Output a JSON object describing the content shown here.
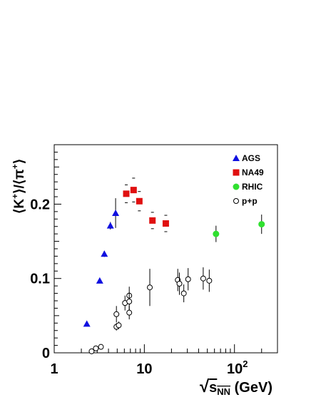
{
  "chart_data": {
    "type": "scatter",
    "title": "",
    "xlabel": {
      "prefix": "√",
      "base": "s",
      "sub": "NN",
      "unit": " (GeV)"
    },
    "ylabel": {
      "open": "⟨",
      "k": "K",
      "k_sup": "+",
      "mid": "⟩/⟨",
      "pi": "π",
      "pi_sup": "+",
      "close": "⟩"
    },
    "x_scale": "log",
    "xlim": [
      1,
      300
    ],
    "ylim": [
      0,
      0.28
    ],
    "x_ticks": [
      {
        "value": 1,
        "label": "1"
      },
      {
        "value": 10,
        "label": "10"
      },
      {
        "value": 100,
        "label": "10",
        "sup": "2"
      }
    ],
    "y_ticks": [
      {
        "value": 0,
        "label": "0"
      },
      {
        "value": 0.1,
        "label": "0.1"
      },
      {
        "value": 0.2,
        "label": "0.2"
      }
    ],
    "grid": false,
    "legend_position": "top-right",
    "series": [
      {
        "name": "AGS",
        "marker": "triangle",
        "color": "#1010e0",
        "points": [
          {
            "x": 2.3,
            "y": 0.039,
            "err": 0
          },
          {
            "x": 3.2,
            "y": 0.097,
            "err": 0
          },
          {
            "x": 3.6,
            "y": 0.133,
            "err": 0.004
          },
          {
            "x": 4.2,
            "y": 0.171,
            "err": 0.005
          },
          {
            "x": 4.8,
            "y": 0.188,
            "err": 0.02
          }
        ]
      },
      {
        "name": "NA49",
        "marker": "square",
        "color": "#e01010",
        "points": [
          {
            "x": 6.3,
            "y": 0.214,
            "err": 0.012
          },
          {
            "x": 7.6,
            "y": 0.219,
            "err": 0.016
          },
          {
            "x": 8.8,
            "y": 0.204,
            "err": 0.013
          },
          {
            "x": 12.3,
            "y": 0.178,
            "err": 0.011
          },
          {
            "x": 17.3,
            "y": 0.174,
            "err": 0.011
          }
        ]
      },
      {
        "name": "RHIC",
        "marker": "circle-filled",
        "color": "#30e030",
        "points": [
          {
            "x": 62.4,
            "y": 0.16,
            "err": 0.011
          },
          {
            "x": 200,
            "y": 0.173,
            "err": 0.013
          }
        ]
      },
      {
        "name": "p+p",
        "marker": "circle-open",
        "color": "#000000",
        "points": [
          {
            "x": 2.6,
            "y": 0.002,
            "err": 0
          },
          {
            "x": 2.9,
            "y": 0.006,
            "err": 0
          },
          {
            "x": 3.3,
            "y": 0.008,
            "err": 0
          },
          {
            "x": 4.9,
            "y": 0.052,
            "err": 0.011
          },
          {
            "x": 4.9,
            "y": 0.035,
            "err": 0.005
          },
          {
            "x": 5.2,
            "y": 0.037,
            "err": 0.005
          },
          {
            "x": 6.1,
            "y": 0.067,
            "err": 0.01
          },
          {
            "x": 6.8,
            "y": 0.077,
            "err": 0.012
          },
          {
            "x": 6.8,
            "y": 0.069,
            "err": 0.012
          },
          {
            "x": 6.8,
            "y": 0.054,
            "err": 0.009
          },
          {
            "x": 11.5,
            "y": 0.088,
            "err": 0.025
          },
          {
            "x": 23.5,
            "y": 0.098,
            "err": 0.015
          },
          {
            "x": 24.5,
            "y": 0.093,
            "err": 0.015
          },
          {
            "x": 27.4,
            "y": 0.08,
            "err": 0.012
          },
          {
            "x": 30.6,
            "y": 0.099,
            "err": 0.015
          },
          {
            "x": 45,
            "y": 0.1,
            "err": 0.015
          },
          {
            "x": 52.5,
            "y": 0.097,
            "err": 0.015
          }
        ]
      }
    ]
  }
}
